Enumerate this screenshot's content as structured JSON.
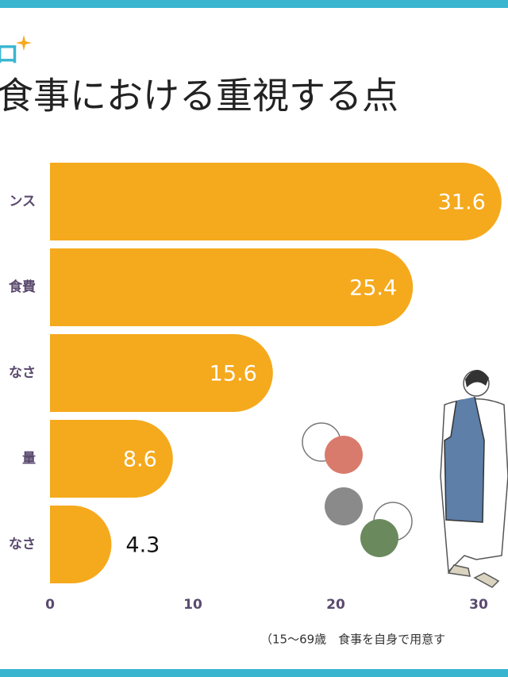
{
  "chart_data": {
    "type": "bar",
    "orientation": "horizontal",
    "logo": "ロ",
    "title": "食事における重視する点",
    "categories": [
      "ンス",
      "食費",
      "なさ",
      "量",
      "なさ"
    ],
    "values": [
      31.6,
      25.4,
      15.6,
      8.6,
      4.3
    ],
    "color": "#f5a91d",
    "xlim": [
      0,
      32
    ],
    "xticks": [
      0,
      10,
      20,
      30
    ],
    "footnote": "（15〜69歳　食事を自身で用意す"
  }
}
